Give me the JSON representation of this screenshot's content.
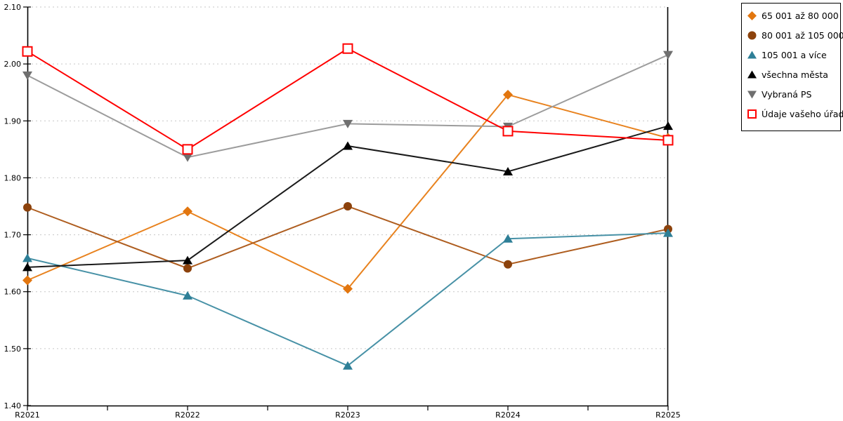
{
  "page": {
    "background": "#FFFFFF"
  },
  "chart_data": {
    "type": "line",
    "title": "",
    "categories": [
      "R2021",
      "R2022",
      "R2023",
      "R2024",
      "R2025"
    ],
    "series": [
      {
        "name": "65 001 až 80 000",
        "marker": "diamond",
        "color": "#E8821E",
        "marker_color": "#E2760F",
        "values": [
          1.62,
          1.741,
          1.605,
          1.946,
          1.87
        ]
      },
      {
        "name": "80 001 až 105 000",
        "marker": "circle",
        "color": "#AE5D1F",
        "marker_color": "#8C420C",
        "values": [
          1.748,
          1.641,
          1.75,
          1.648,
          1.71
        ]
      },
      {
        "name": "105 001 a více",
        "marker": "triangle-up",
        "color": "#4791A6",
        "marker_color": "#2E7F97",
        "values": [
          1.659,
          1.593,
          1.47,
          1.693,
          1.703
        ]
      },
      {
        "name": "všechna města",
        "marker": "triangle-up",
        "color": "#1A1A1A",
        "marker_color": "#000000",
        "values": [
          1.643,
          1.655,
          1.856,
          1.811,
          1.891
        ]
      },
      {
        "name": "Vybraná PS",
        "marker": "triangle-down",
        "color": "#9C9C9C",
        "marker_color": "#6F6F6F",
        "values": [
          1.98,
          1.836,
          1.895,
          1.89,
          2.016
        ]
      },
      {
        "name": "Údaje vašeho úřadu",
        "marker": "square-open",
        "color": "#FF0000",
        "marker_color": "#FF0000",
        "values": [
          2.022,
          1.85,
          2.027,
          1.882,
          1.866
        ]
      }
    ],
    "y_axis": {
      "min": 1.4,
      "max": 2.1,
      "step": 0.1,
      "tick_labels": [
        "2.10",
        "2.00",
        "1.90",
        "1.80",
        "1.70",
        "1.60",
        "1.50",
        "1.40"
      ]
    },
    "x_axis": {
      "tick_labels": [
        "R2021",
        "R2022",
        "R2023",
        "R2024",
        "R2025"
      ]
    },
    "grid": {
      "show": true,
      "style": "dotted",
      "color": "#C6C6C6"
    },
    "legend": {
      "position": "top-right",
      "border_color": "#000000",
      "background": "#FFFFFF"
    },
    "axis_color": "#000000",
    "ylim": [
      1.4,
      2.1
    ]
  }
}
